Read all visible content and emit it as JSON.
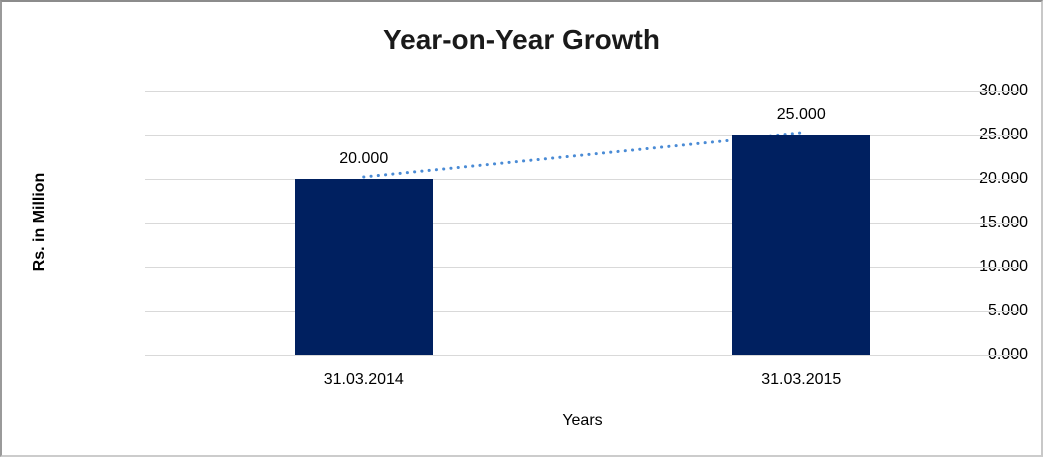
{
  "chart_data": {
    "type": "bar",
    "title": "Year-on-Year Growth",
    "xlabel": "Years",
    "ylabel": "Rs. in Million",
    "categories": [
      "31.03.2014",
      "31.03.2015"
    ],
    "values": [
      20000,
      25000
    ],
    "value_labels": [
      "20.000",
      "25.000"
    ],
    "y_ticks": [
      {
        "value": 0,
        "label": "0.000"
      },
      {
        "value": 5000,
        "label": "5.000"
      },
      {
        "value": 10000,
        "label": "10.000"
      },
      {
        "value": 15000,
        "label": "15.000"
      },
      {
        "value": 20000,
        "label": "20.000"
      },
      {
        "value": 25000,
        "label": "25.000"
      },
      {
        "value": 30000,
        "label": "30.000"
      }
    ],
    "ylim": [
      0,
      30000
    ],
    "grid": true,
    "legend_position": "none",
    "trendline": {
      "style": "dotted",
      "connects": "bar tops"
    },
    "colors": {
      "bar": "#002060",
      "trendline": "#4a8bd5",
      "gridline": "#d9d9d9",
      "text": "#000000"
    }
  }
}
